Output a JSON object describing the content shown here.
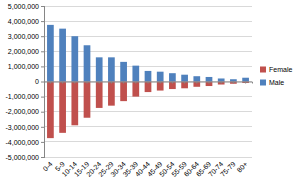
{
  "chart_data": {
    "type": "bar",
    "stacked": true,
    "grid": true,
    "legend": "right",
    "categories": [
      "0-4",
      "5-9",
      "10-14",
      "15-19",
      "20-24",
      "25-29",
      "30-34",
      "35-39",
      "40-44",
      "45-49",
      "50-54",
      "55-59",
      "60-64",
      "65-69",
      "70-74",
      "75-79",
      "80+"
    ],
    "series": [
      {
        "name": "Female",
        "color": "#c0504d",
        "values": [
          -3750000,
          -3400000,
          -2900000,
          -2400000,
          -1750000,
          -1600000,
          -1300000,
          -1000000,
          -700000,
          -600000,
          -500000,
          -450000,
          -350000,
          -300000,
          -200000,
          -150000,
          -100000
        ]
      },
      {
        "name": "Male",
        "color": "#4f81bd",
        "values": [
          3750000,
          3500000,
          3000000,
          2400000,
          1600000,
          1600000,
          1300000,
          1050000,
          700000,
          650000,
          550000,
          450000,
          350000,
          300000,
          200000,
          150000,
          250000
        ]
      }
    ],
    "ylim": [
      -5000000,
      5000000
    ],
    "yticks": [
      {
        "value": -5000000,
        "label": "-5,000,000"
      },
      {
        "value": -4000000,
        "label": "-4,000,000"
      },
      {
        "value": -3000000,
        "label": "-3,000,000"
      },
      {
        "value": -2000000,
        "label": "-2,000,000"
      },
      {
        "value": -1000000,
        "label": "-1,000,000"
      },
      0,
      {
        "value": 1000000,
        "label": "1,000,000"
      },
      {
        "value": 2000000,
        "label": "2,000,000"
      },
      {
        "value": 3000000,
        "label": "3,000,000"
      },
      {
        "value": 4000000,
        "label": "4,000,000"
      },
      {
        "value": 5000000,
        "label": "5,000,000"
      }
    ]
  }
}
